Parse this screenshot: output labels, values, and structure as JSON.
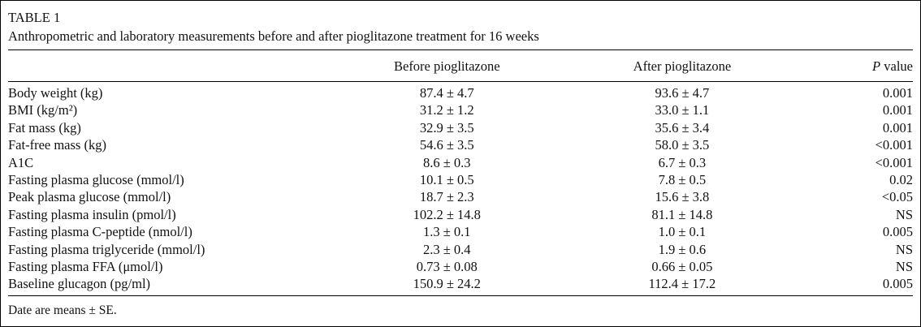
{
  "table": {
    "label": "TABLE 1",
    "caption": "Anthropometric and laboratory measurements before and after pioglitazone treatment for 16 weeks",
    "headers": {
      "before": "Before pioglitazone",
      "after": "After pioglitazone",
      "p_italic": "P",
      "p_rest": " value"
    },
    "rows": [
      {
        "label": "Body weight (kg)",
        "before": "87.4 ± 4.7",
        "after": "93.6 ± 4.7",
        "p": "0.001"
      },
      {
        "label": "BMI (kg/m²)",
        "before": "31.2 ± 1.2",
        "after": "33.0 ± 1.1",
        "p": "0.001"
      },
      {
        "label": "Fat mass (kg)",
        "before": "32.9 ± 3.5",
        "after": "35.6 ± 3.4",
        "p": "0.001"
      },
      {
        "label": "Fat-free mass (kg)",
        "before": "54.6 ± 3.5",
        "after": "58.0 ± 3.5",
        "p": "<0.001"
      },
      {
        "label": "A1C",
        "before": "8.6 ± 0.3",
        "after": "6.7 ± 0.3",
        "p": "<0.001"
      },
      {
        "label": "Fasting plasma glucose (mmol/l)",
        "before": "10.1 ± 0.5",
        "after": "7.8 ± 0.5",
        "p": "0.02"
      },
      {
        "label": "Peak plasma glucose (mmol/l)",
        "before": "18.7 ± 2.3",
        "after": "15.6 ± 3.8",
        "p": "<0.05"
      },
      {
        "label": "Fasting plasma insulin (pmol/l)",
        "before": "102.2 ± 14.8",
        "after": "81.1 ± 14.8",
        "p": "NS"
      },
      {
        "label": "Fasting plasma C-peptide (nmol/l)",
        "before": "1.3 ± 0.1",
        "after": "1.0 ± 0.1",
        "p": "0.005"
      },
      {
        "label": "Fasting plasma triglyceride (mmol/l)",
        "before": "2.3 ± 0.4",
        "after": "1.9 ± 0.6",
        "p": "NS"
      },
      {
        "label": "Fasting plasma FFA (μmol/l)",
        "before": "0.73 ± 0.08",
        "after": "0.66 ± 0.05",
        "p": "NS"
      },
      {
        "label": "Baseline glucagon (pg/ml)",
        "before": "150.9 ± 24.2",
        "after": "112.4 ± 17.2",
        "p": "0.005"
      }
    ],
    "footnote": "Date are means ± SE."
  },
  "chart_data": {
    "type": "table",
    "title": "TABLE 1 — Anthropometric and laboratory measurements before and after pioglitazone treatment for 16 weeks",
    "columns": [
      "",
      "Before pioglitazone",
      "After pioglitazone",
      "P value"
    ],
    "rows": [
      [
        "Body weight (kg)",
        "87.4 ± 4.7",
        "93.6 ± 4.7",
        "0.001"
      ],
      [
        "BMI (kg/m²)",
        "31.2 ± 1.2",
        "33.0 ± 1.1",
        "0.001"
      ],
      [
        "Fat mass (kg)",
        "32.9 ± 3.5",
        "35.6 ± 3.4",
        "0.001"
      ],
      [
        "Fat-free mass (kg)",
        "54.6 ± 3.5",
        "58.0 ± 3.5",
        "<0.001"
      ],
      [
        "A1C",
        "8.6 ± 0.3",
        "6.7 ± 0.3",
        "<0.001"
      ],
      [
        "Fasting plasma glucose (mmol/l)",
        "10.1 ± 0.5",
        "7.8 ± 0.5",
        "0.02"
      ],
      [
        "Peak plasma glucose (mmol/l)",
        "18.7 ± 2.3",
        "15.6 ± 3.8",
        "<0.05"
      ],
      [
        "Fasting plasma insulin (pmol/l)",
        "102.2 ± 14.8",
        "81.1 ± 14.8",
        "NS"
      ],
      [
        "Fasting plasma C-peptide (nmol/l)",
        "1.3 ± 0.1",
        "1.0 ± 0.1",
        "0.005"
      ],
      [
        "Fasting plasma triglyceride (mmol/l)",
        "2.3 ± 0.4",
        "1.9 ± 0.6",
        "NS"
      ],
      [
        "Fasting plasma FFA (μmol/l)",
        "0.73 ± 0.08",
        "0.66 ± 0.05",
        "NS"
      ],
      [
        "Baseline glucagon (pg/ml)",
        "150.9 ± 24.2",
        "112.4 ± 17.2",
        "0.005"
      ]
    ],
    "footnote": "Date are means ± SE."
  }
}
